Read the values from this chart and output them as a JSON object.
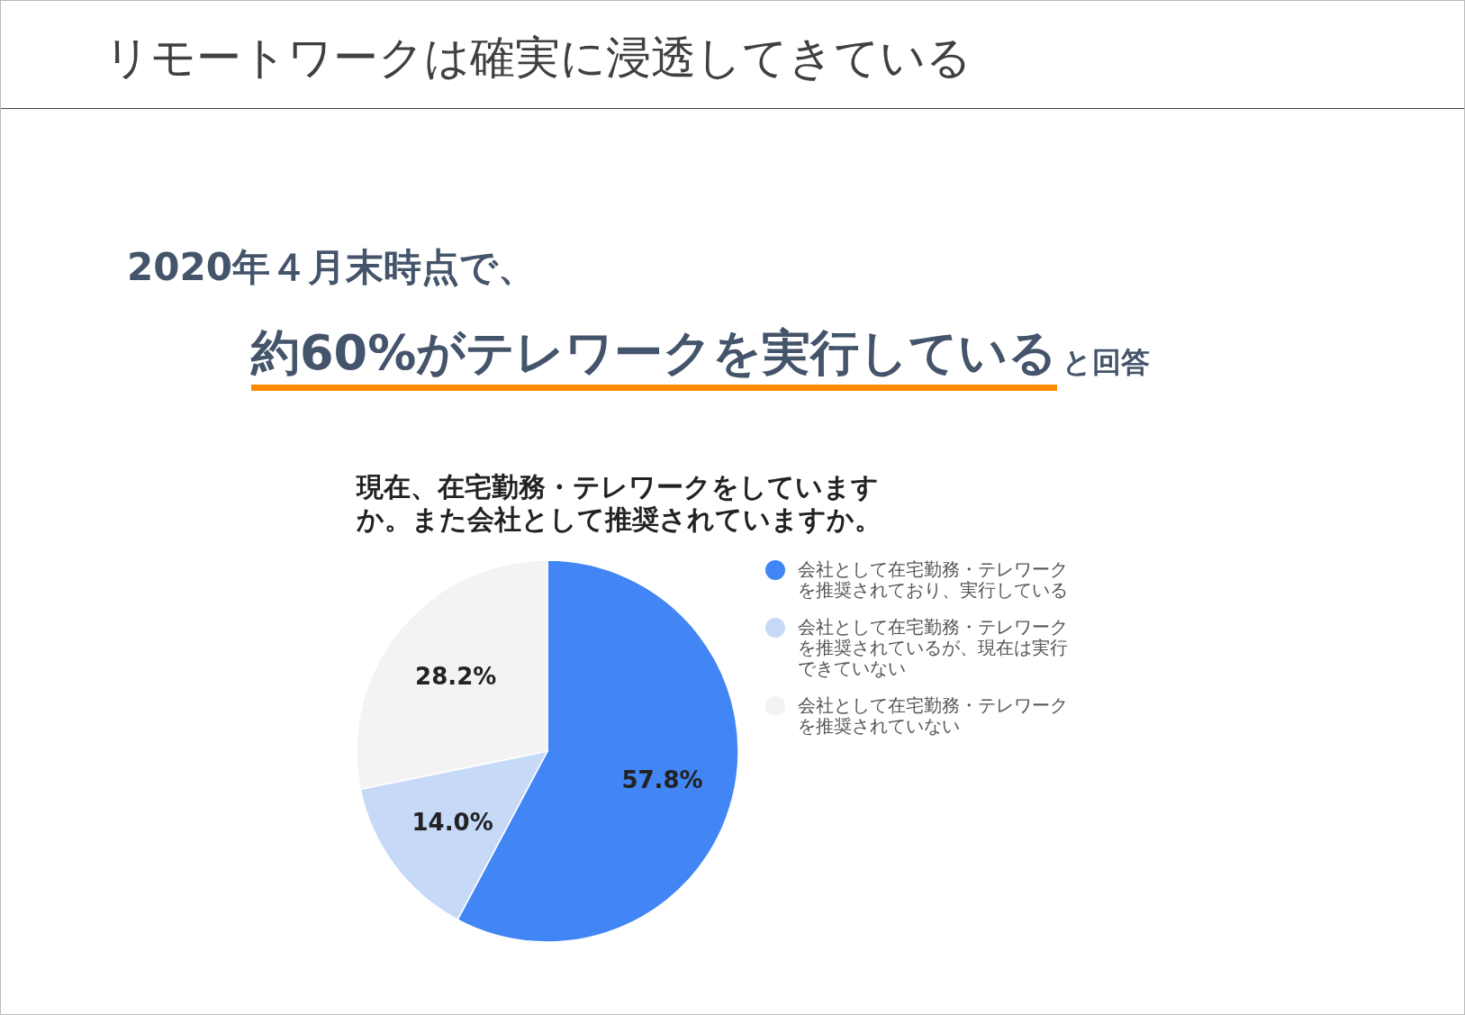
{
  "chart_data": {
    "type": "pie",
    "title": "リモートワークは確実に浸透してきている",
    "subtitle": "現在、在宅勤務・テレワークをしていますか。また会社として推奨されていますか。",
    "annotations": [
      "2020年４月末時点で、",
      "約60%がテレワークを実行している",
      "と回答"
    ],
    "categories": [
      "会社として在宅勤務・テレワークを推奨されており、実行している",
      "会社として在宅勤務・テレワークを推奨されているが、現在は実行できていない",
      "会社として在宅勤務・テレワークを推奨されていない"
    ],
    "values": [
      57.8,
      14.0,
      28.2
    ],
    "value_labels": [
      "57.8%",
      "14.0%",
      "28.2%"
    ],
    "colors": [
      "#4285f4",
      "#c6d9f7",
      "#f3f3f3"
    ],
    "legend": "right"
  }
}
